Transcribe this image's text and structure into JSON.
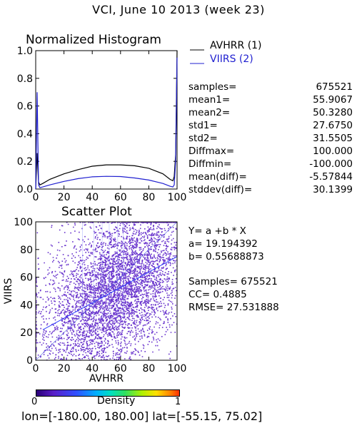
{
  "header": {
    "title": "VCI,  June 10 2013 (week 23)"
  },
  "histogram": {
    "title": "Normalized Histogram",
    "legend": [
      {
        "label": "AVHRR (1)",
        "color": "#000000"
      },
      {
        "label": "VIIRS (2)",
        "color": "#2020d0"
      }
    ]
  },
  "stats": [
    {
      "label": "samples=",
      "value": "675521"
    },
    {
      "label": "mean1=",
      "value": "55.9067"
    },
    {
      "label": "mean2=",
      "value": "50.3280"
    },
    {
      "label": "std1=",
      "value": "27.6750"
    },
    {
      "label": "std2=",
      "value": "31.5505"
    },
    {
      "label": "Diffmax=",
      "value": "100.000"
    },
    {
      "label": "Diffmin=",
      "value": "-100.000"
    },
    {
      "label": "mean(diff)=",
      "value": "-5.57844"
    },
    {
      "label": "stddev(diff)=",
      "value": "30.1399"
    }
  ],
  "scatter": {
    "title": "Scatter Plot",
    "regression": {
      "equation": "Y= a +b * X",
      "a": "a= 19.194392",
      "b": "b= 0.55688873",
      "samples": "Samples= 675521",
      "cc": "CC=  0.4885",
      "rmse": "RMSE= 27.531888"
    }
  },
  "colorbar": {
    "label": "Density",
    "min": "0",
    "max": "1"
  },
  "footer": {
    "text": "lon=[-180.00, 180.00] lat=[-55.15, 75.02]"
  },
  "chart_data": [
    {
      "type": "line",
      "title": "Normalized Histogram",
      "xlim": [
        0,
        100
      ],
      "ylim": [
        0,
        1
      ],
      "x_ticks": [
        "0",
        "20",
        "40",
        "60",
        "80",
        "100"
      ],
      "y_ticks": [
        "0.0",
        "0.2",
        "0.4",
        "0.6",
        "0.8",
        "1.0"
      ],
      "x": [
        0,
        1,
        2,
        3,
        5,
        10,
        20,
        30,
        40,
        50,
        60,
        70,
        80,
        90,
        95,
        97,
        98,
        99,
        100
      ],
      "series": [
        {
          "name": "AVHRR (1)",
          "values": [
            0.0,
            0.26,
            0.05,
            0.03,
            0.04,
            0.07,
            0.11,
            0.14,
            0.165,
            0.175,
            0.175,
            0.168,
            0.15,
            0.11,
            0.07,
            0.06,
            0.09,
            0.25,
            1.0
          ]
        },
        {
          "name": "VIIRS (2)",
          "values": [
            0.0,
            0.7,
            0.03,
            0.01,
            0.015,
            0.03,
            0.055,
            0.075,
            0.088,
            0.092,
            0.09,
            0.08,
            0.065,
            0.04,
            0.02,
            0.015,
            0.03,
            0.2,
            0.95
          ]
        }
      ]
    },
    {
      "type": "scatter",
      "title": "Scatter Plot",
      "xlabel": "AVHRR",
      "ylabel": "VIIRS",
      "xlim": [
        0,
        100
      ],
      "ylim": [
        0,
        100
      ],
      "x_ticks": [
        "0",
        "20",
        "40",
        "60",
        "80",
        "100"
      ],
      "y_ticks": [
        "0",
        "20",
        "40",
        "60",
        "80",
        "100"
      ],
      "regression_line": {
        "a": 19.194392,
        "b": 0.55688873
      },
      "samples": 675521,
      "point_color": "#5a1fc8"
    }
  ]
}
